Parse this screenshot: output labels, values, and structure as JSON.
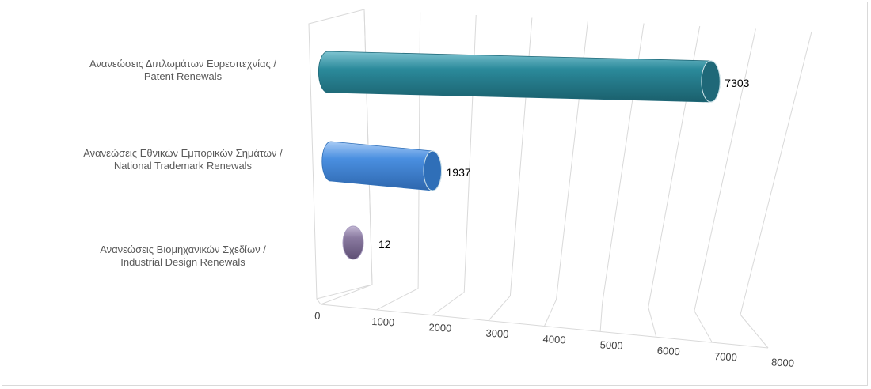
{
  "chart_data": {
    "type": "bar",
    "orientation": "horizontal",
    "style": "3d-cylinder",
    "categories": [
      [
        "Ανανεώσεις Διπλωμάτων Ευρεσιτεχνίας /",
        "Patent Renewals"
      ],
      [
        "Ανανεώσεις Εθνικών Εμπορικών Σημάτων /",
        "National Trademark Renewals"
      ],
      [
        "Ανανεώσεις Βιομηχανικών Σχεδίων  /",
        "Industrial Design Renewals"
      ]
    ],
    "values": [
      7303,
      1937,
      12
    ],
    "data_labels": [
      "7303",
      "1937",
      "12"
    ],
    "xlim": [
      0,
      8000
    ],
    "x_ticks": [
      "0",
      "1000",
      "2000",
      "3000",
      "4000",
      "5000",
      "6000",
      "7000",
      "8000"
    ],
    "grid": true,
    "legend": "none",
    "title": "",
    "xlabel": "",
    "ylabel": "",
    "colors": {
      "bar_colors": [
        "#2b8a9b",
        "#4a8fe0",
        "#8a7aa0"
      ],
      "bar_end_colors": [
        "#1f6878",
        "#2f6fb8",
        "#6e5f88"
      ],
      "gridline": "#d9d9d9"
    }
  }
}
